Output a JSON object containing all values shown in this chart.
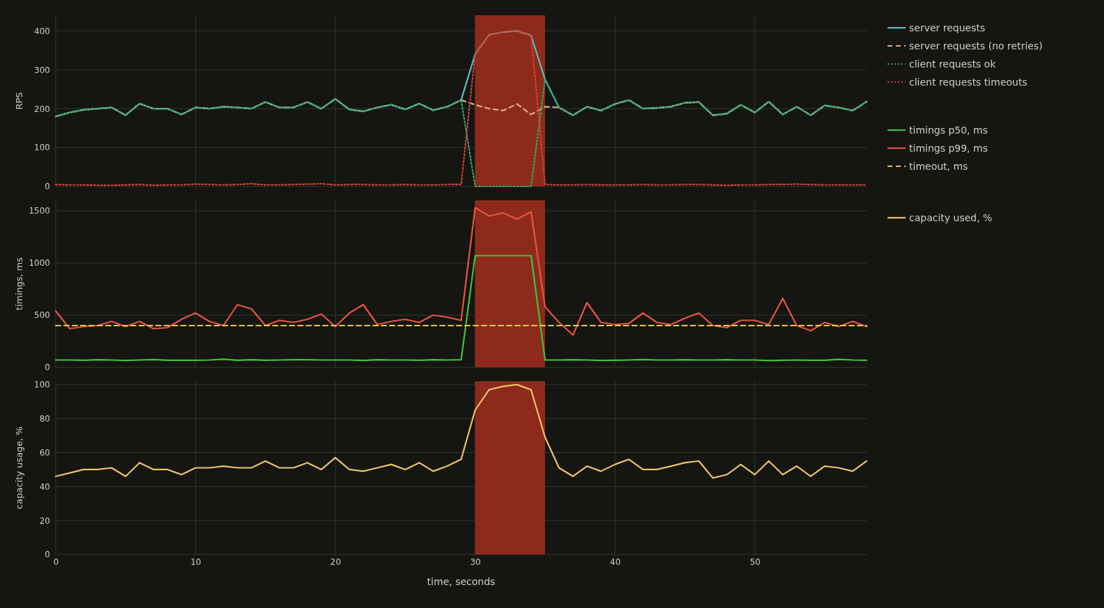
{
  "chart_data": [
    {
      "type": "line",
      "ylabel": "RPS",
      "xlim": [
        0,
        58
      ],
      "xticks": [
        0,
        10,
        20,
        30,
        40,
        50
      ],
      "ylim": [
        0,
        440
      ],
      "yticks": [
        0,
        100,
        200,
        300,
        400
      ],
      "grid": true,
      "legend": "right",
      "tick_labels": "y",
      "x": [
        0,
        1,
        2,
        3,
        4,
        5,
        6,
        7,
        8,
        9,
        10,
        11,
        12,
        13,
        14,
        15,
        16,
        17,
        18,
        19,
        20,
        21,
        22,
        23,
        24,
        25,
        26,
        27,
        28,
        29,
        30,
        31,
        32,
        33,
        34,
        35,
        36,
        37,
        38,
        39,
        40,
        41,
        42,
        43,
        44,
        45,
        46,
        47,
        48,
        49,
        50,
        51,
        52,
        53,
        54,
        55,
        56,
        57,
        58
      ],
      "bands": [
        {
          "axis": "x",
          "from": 30,
          "to": 35,
          "color": "#8e2a1b"
        }
      ],
      "series": [
        {
          "name": "server requests",
          "color": "#4fc3c0",
          "line_style": "solid",
          "values": [
            180,
            190,
            197,
            200,
            203,
            183,
            213,
            200,
            200,
            185,
            203,
            200,
            205,
            203,
            200,
            217,
            203,
            203,
            217,
            200,
            225,
            198,
            193,
            203,
            210,
            198,
            213,
            196,
            205,
            222,
            340,
            390,
            397,
            400,
            388,
            275,
            203,
            183,
            205,
            195,
            212,
            222,
            200,
            202,
            205,
            215,
            217,
            183,
            187,
            210,
            190,
            218,
            185,
            205,
            183,
            208,
            203,
            195,
            218
          ]
        },
        {
          "name": "server requests (no retries)",
          "color": "#d9b08c",
          "line_style": "dashed",
          "values": [
            180,
            190,
            197,
            200,
            203,
            183,
            213,
            200,
            200,
            185,
            203,
            200,
            205,
            203,
            200,
            217,
            203,
            203,
            217,
            200,
            225,
            198,
            193,
            203,
            210,
            198,
            213,
            196,
            205,
            222,
            210,
            200,
            195,
            212,
            185,
            205,
            203,
            183,
            205,
            195,
            212,
            222,
            200,
            202,
            205,
            215,
            217,
            183,
            187,
            210,
            190,
            218,
            185,
            205,
            183,
            208,
            203,
            195,
            218
          ]
        },
        {
          "name": "client requests ok",
          "color": "#2fa86a",
          "line_style": "dotted",
          "values": [
            180,
            190,
            197,
            200,
            203,
            183,
            213,
            200,
            200,
            185,
            203,
            200,
            205,
            203,
            200,
            217,
            203,
            203,
            217,
            200,
            225,
            198,
            193,
            203,
            210,
            198,
            213,
            196,
            205,
            222,
            0,
            0,
            0,
            0,
            0,
            275,
            203,
            183,
            205,
            195,
            212,
            222,
            200,
            202,
            205,
            215,
            217,
            183,
            187,
            210,
            190,
            218,
            185,
            205,
            183,
            208,
            203,
            195,
            218
          ]
        },
        {
          "name": "client requests timeouts",
          "color": "#d0443a",
          "line_style": "dotted",
          "values": [
            5,
            4,
            4,
            3,
            3,
            4,
            5,
            3,
            4,
            4,
            6,
            5,
            4,
            5,
            7,
            4,
            4,
            5,
            6,
            7,
            4,
            5,
            5,
            4,
            4,
            5,
            4,
            4,
            5,
            5,
            340,
            390,
            397,
            400,
            388,
            5,
            4,
            4,
            5,
            4,
            4,
            4,
            5,
            4,
            4,
            5,
            5,
            4,
            3,
            4,
            4,
            5,
            5,
            6,
            5,
            4,
            4,
            4,
            4
          ]
        }
      ]
    },
    {
      "type": "line",
      "ylabel": "timings, ms",
      "xlim": [
        0,
        58
      ],
      "xticks": [
        0,
        10,
        20,
        30,
        40,
        50
      ],
      "ylim": [
        0,
        1600
      ],
      "yticks": [
        0,
        500,
        1000,
        1500
      ],
      "grid": true,
      "legend": "right",
      "tick_labels": "y",
      "x": [
        0,
        1,
        2,
        3,
        4,
        5,
        6,
        7,
        8,
        9,
        10,
        11,
        12,
        13,
        14,
        15,
        16,
        17,
        18,
        19,
        20,
        21,
        22,
        23,
        24,
        25,
        26,
        27,
        28,
        29,
        30,
        31,
        32,
        33,
        34,
        35,
        36,
        37,
        38,
        39,
        40,
        41,
        42,
        43,
        44,
        45,
        46,
        47,
        48,
        49,
        50,
        51,
        52,
        53,
        54,
        55,
        56,
        57,
        58
      ],
      "bands": [
        {
          "axis": "x",
          "from": 30,
          "to": 35,
          "color": "#8e2a1b"
        }
      ],
      "series": [
        {
          "name": "timings p50, ms",
          "color": "#3ec43e",
          "line_style": "solid",
          "values": [
            70,
            70,
            68,
            72,
            70,
            66,
            70,
            74,
            68,
            68,
            68,
            70,
            78,
            68,
            72,
            68,
            70,
            72,
            72,
            70,
            70,
            70,
            66,
            72,
            70,
            70,
            68,
            72,
            70,
            72,
            1070,
            1070,
            1070,
            1070,
            1070,
            70,
            70,
            72,
            70,
            66,
            68,
            70,
            74,
            70,
            70,
            72,
            70,
            70,
            72,
            70,
            70,
            64,
            68,
            70,
            68,
            68,
            76,
            70,
            68
          ]
        },
        {
          "name": "timings p99, ms",
          "color": "#e8553f",
          "line_style": "solid",
          "values": [
            540,
            370,
            390,
            400,
            440,
            390,
            440,
            370,
            380,
            460,
            520,
            440,
            400,
            600,
            560,
            400,
            450,
            430,
            460,
            510,
            390,
            520,
            600,
            410,
            440,
            460,
            430,
            500,
            480,
            450,
            1530,
            1450,
            1480,
            1420,
            1490,
            580,
            430,
            310,
            620,
            430,
            410,
            420,
            520,
            430,
            410,
            470,
            520,
            400,
            380,
            450,
            450,
            410,
            660,
            400,
            350,
            430,
            390,
            440,
            390
          ]
        },
        {
          "name": "timeout, ms",
          "color": "#e9c94a",
          "line_style": "dashed",
          "values": [
            400,
            400,
            400,
            400,
            400,
            400,
            400,
            400,
            400,
            400,
            400,
            400,
            400,
            400,
            400,
            400,
            400,
            400,
            400,
            400,
            400,
            400,
            400,
            400,
            400,
            400,
            400,
            400,
            400,
            400,
            400,
            400,
            400,
            400,
            400,
            400,
            400,
            400,
            400,
            400,
            400,
            400,
            400,
            400,
            400,
            400,
            400,
            400,
            400,
            400,
            400,
            400,
            400,
            400,
            400,
            400,
            400,
            400,
            400
          ]
        }
      ]
    },
    {
      "type": "line",
      "ylabel": "capacity usage, %",
      "xlabel": "time, seconds",
      "xlim": [
        0,
        58
      ],
      "xticks": [
        0,
        10,
        20,
        30,
        40,
        50
      ],
      "ylim": [
        0,
        102
      ],
      "yticks": [
        0,
        20,
        40,
        60,
        80,
        100
      ],
      "grid": true,
      "legend": "right",
      "x": [
        0,
        1,
        2,
        3,
        4,
        5,
        6,
        7,
        8,
        9,
        10,
        11,
        12,
        13,
        14,
        15,
        16,
        17,
        18,
        19,
        20,
        21,
        22,
        23,
        24,
        25,
        26,
        27,
        28,
        29,
        30,
        31,
        32,
        33,
        34,
        35,
        36,
        37,
        38,
        39,
        40,
        41,
        42,
        43,
        44,
        45,
        46,
        47,
        48,
        49,
        50,
        51,
        52,
        53,
        54,
        55,
        56,
        57,
        58
      ],
      "bands": [
        {
          "axis": "x",
          "from": 30,
          "to": 35,
          "color": "#8e2a1b"
        }
      ],
      "series": [
        {
          "name": "capacity used, %",
          "color": "#ecc46a",
          "line_style": "solid",
          "values": [
            46,
            48,
            50,
            50,
            51,
            46,
            54,
            50,
            50,
            47,
            51,
            51,
            52,
            51,
            51,
            55,
            51,
            51,
            54,
            50,
            57,
            50,
            49,
            51,
            53,
            50,
            54,
            49,
            52,
            56,
            85,
            97,
            99,
            100,
            97,
            69,
            51,
            46,
            52,
            49,
            53,
            56,
            50,
            50,
            52,
            54,
            55,
            45,
            47,
            53,
            47,
            55,
            47,
            52,
            46,
            52,
            51,
            49,
            55
          ]
        }
      ]
    }
  ]
}
